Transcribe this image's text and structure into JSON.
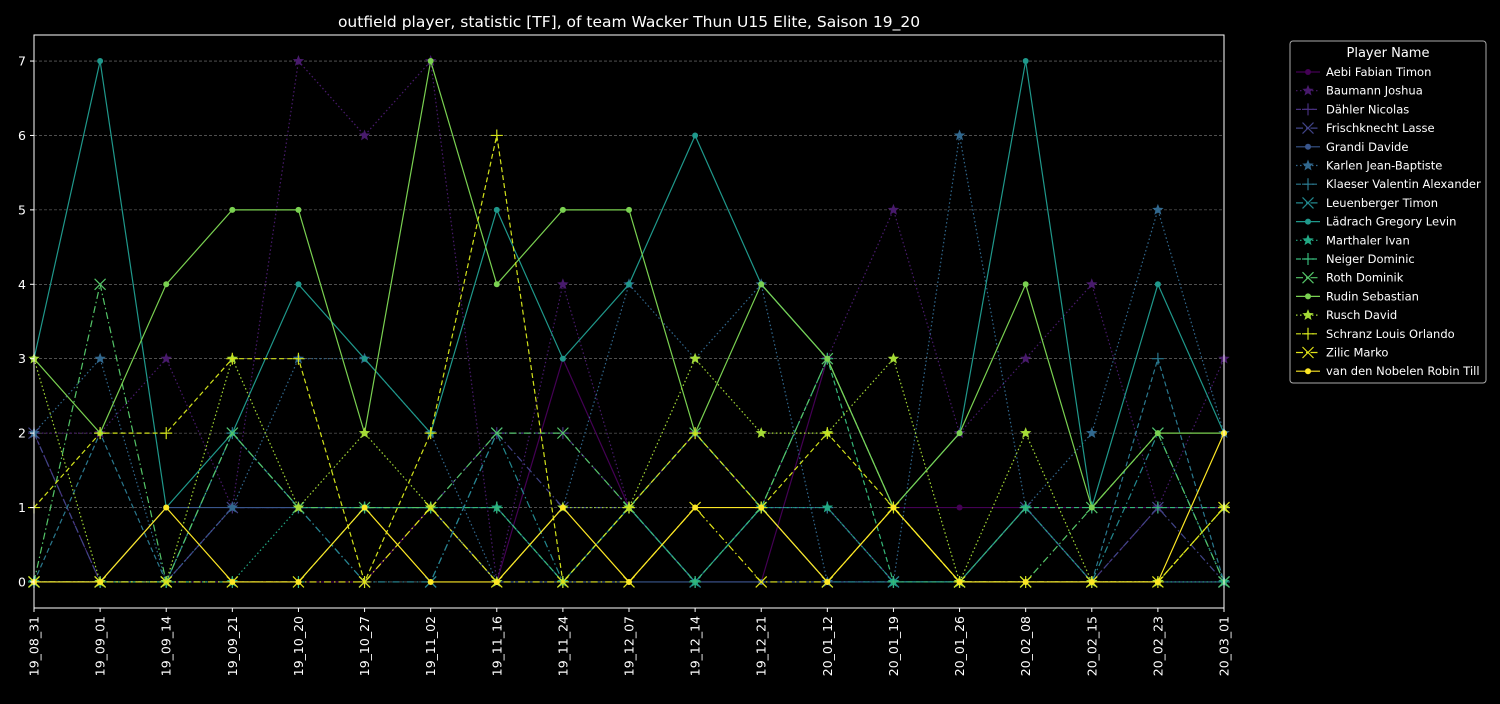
{
  "chart_data": {
    "type": "line",
    "title": "outfield player, statistic [TF], of team Wacker Thun U15 Elite, Saison 19_20",
    "xlabel": "",
    "ylabel": "",
    "x": [
      "19_08_31",
      "19_09_01",
      "19_09_14",
      "19_09_21",
      "19_10_20",
      "19_10_27",
      "19_11_02",
      "19_11_16",
      "19_11_24",
      "19_12_07",
      "19_12_14",
      "19_12_21",
      "20_01_12",
      "20_01_19",
      "20_01_26",
      "20_02_08",
      "20_02_15",
      "20_02_23",
      "20_03_01"
    ],
    "ylim": [
      -0.35,
      7.35
    ],
    "yticks": [
      0,
      1,
      2,
      3,
      4,
      5,
      6,
      7
    ],
    "grid": true,
    "legend": {
      "title": "Player Name",
      "placement": "outside-right"
    },
    "series": [
      {
        "name": "Aebi Fabian Timon",
        "color": "#440154",
        "marker": "circle",
        "dash": "solid",
        "values": [
          0,
          0,
          0,
          0,
          0,
          0,
          1,
          0,
          3,
          1,
          0,
          0,
          3,
          1,
          1,
          1,
          1,
          1,
          1
        ]
      },
      {
        "name": "Baumann Joshua",
        "color": "#481a6c",
        "marker": "star",
        "dash": "dotted",
        "values": [
          2,
          2,
          3,
          1,
          7,
          6,
          7,
          0,
          4,
          1,
          2,
          1,
          3,
          5,
          2,
          3,
          4,
          1,
          3
        ]
      },
      {
        "name": "Dähler Nicolas",
        "color": "#472f7d",
        "marker": "plus",
        "dash": "dashed",
        "values": [
          2,
          0,
          0,
          1,
          1,
          1,
          1,
          2,
          2,
          1,
          2,
          1,
          1,
          0,
          0,
          1,
          0,
          1,
          1
        ]
      },
      {
        "name": "Frischknecht Lasse",
        "color": "#414487",
        "marker": "x",
        "dash": "dashdot",
        "values": [
          2,
          0,
          0,
          1,
          1,
          0,
          0,
          2,
          1,
          1,
          0,
          1,
          0,
          0,
          0,
          1,
          0,
          1,
          0
        ]
      },
      {
        "name": "Grandi Davide",
        "color": "#39568c",
        "marker": "circle",
        "dash": "solid",
        "values": [
          0,
          0,
          1,
          1,
          1,
          1,
          1,
          0,
          0,
          0,
          0,
          0,
          0,
          0,
          0,
          0,
          0,
          0,
          0
        ]
      },
      {
        "name": "Karlen Jean-Baptiste",
        "color": "#31688e",
        "marker": "star",
        "dash": "dotted",
        "values": [
          2,
          3,
          0,
          1,
          3,
          3,
          2,
          0,
          1,
          4,
          3,
          4,
          0,
          0,
          6,
          1,
          2,
          5,
          2
        ]
      },
      {
        "name": "Klaeser Valentin Alexander",
        "color": "#2a788e",
        "marker": "plus",
        "dash": "dashed",
        "values": [
          0,
          2,
          0,
          2,
          1,
          1,
          1,
          1,
          0,
          1,
          0,
          1,
          1,
          0,
          0,
          1,
          0,
          3,
          0
        ]
      },
      {
        "name": "Leuenberger Timon",
        "color": "#23888e",
        "marker": "x",
        "dash": "dashdot",
        "values": [
          0,
          0,
          0,
          2,
          1,
          0,
          0,
          2,
          0,
          1,
          0,
          1,
          0,
          0,
          0,
          0,
          0,
          2,
          0
        ]
      },
      {
        "name": "Lädrach Gregory Levin",
        "color": "#1f988b",
        "marker": "circle",
        "dash": "solid",
        "values": [
          3,
          7,
          1,
          2,
          4,
          3,
          2,
          5,
          3,
          4,
          6,
          4,
          3,
          1,
          2,
          7,
          1,
          4,
          2
        ]
      },
      {
        "name": "Marthaler Ivan",
        "color": "#22a884",
        "marker": "star",
        "dash": "dotted",
        "values": [
          0,
          0,
          0,
          0,
          1,
          1,
          1,
          1,
          0,
          1,
          0,
          1,
          1,
          0,
          0,
          1,
          0,
          0,
          0
        ]
      },
      {
        "name": "Neiger Dominic",
        "color": "#35b779",
        "marker": "plus",
        "dash": "dashed",
        "values": [
          0,
          0,
          0,
          0,
          0,
          1,
          1,
          1,
          0,
          1,
          0,
          1,
          3,
          0,
          0,
          1,
          1,
          1,
          1
        ]
      },
      {
        "name": "Roth Dominik",
        "color": "#54c568",
        "marker": "x",
        "dash": "dashdot",
        "values": [
          0,
          4,
          0,
          2,
          1,
          1,
          1,
          2,
          2,
          1,
          2,
          1,
          3,
          1,
          0,
          0,
          1,
          2,
          0
        ]
      },
      {
        "name": "Rudin Sebastian",
        "color": "#7ad151",
        "marker": "circle",
        "dash": "solid",
        "values": [
          3,
          2,
          4,
          5,
          5,
          2,
          7,
          4,
          5,
          5,
          2,
          4,
          3,
          1,
          2,
          4,
          1,
          2,
          2
        ]
      },
      {
        "name": "Rusch David",
        "color": "#a5db36",
        "marker": "star",
        "dash": "dotted",
        "values": [
          3,
          0,
          0,
          3,
          1,
          2,
          1,
          0,
          1,
          1,
          3,
          2,
          2,
          3,
          0,
          2,
          0,
          0,
          1
        ]
      },
      {
        "name": "Schranz Louis Orlando",
        "color": "#d2e21b",
        "marker": "plus",
        "dash": "dashed",
        "values": [
          1,
          2,
          2,
          3,
          3,
          0,
          2,
          6,
          0,
          1,
          2,
          1,
          2,
          1,
          0,
          0,
          0,
          0,
          1
        ]
      },
      {
        "name": "Zilic Marko",
        "color": "#e2e418",
        "marker": "x",
        "dash": "dashdot",
        "values": [
          0,
          0,
          0,
          0,
          0,
          0,
          1,
          0,
          0,
          0,
          1,
          0,
          0,
          1,
          0,
          0,
          0,
          0,
          1
        ]
      },
      {
        "name": "van den Nobelen Robin Till",
        "color": "#fde725",
        "marker": "circle",
        "dash": "solid",
        "values": [
          0,
          0,
          1,
          0,
          0,
          1,
          0,
          0,
          1,
          0,
          1,
          1,
          0,
          1,
          0,
          0,
          0,
          0,
          2
        ]
      }
    ]
  }
}
